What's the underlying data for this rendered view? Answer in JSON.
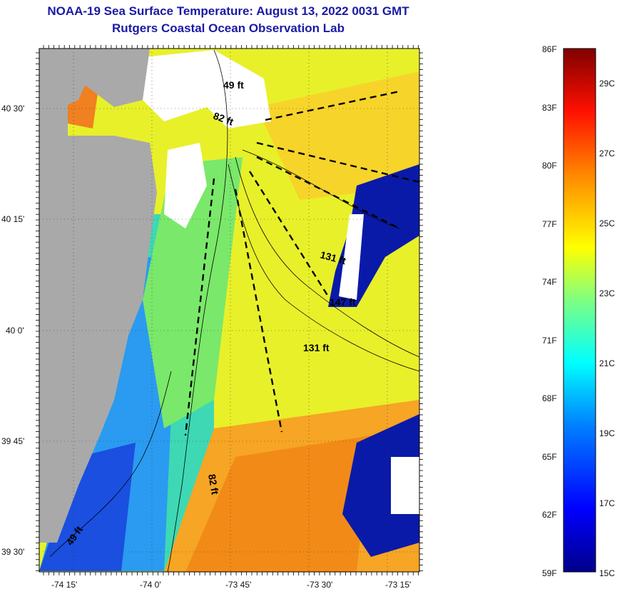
{
  "title": {
    "line1": "NOAA-19 Sea Surface Temperature:  August 13, 2022 0031 GMT",
    "line2": "Rutgers Coastal Ocean Observation Lab"
  },
  "map": {
    "lat_labels": [
      "40 30'",
      "40 15'",
      "40 0'",
      "39 45'",
      "39 30'"
    ],
    "lon_labels": [
      "-74 15'",
      "-74 0'",
      "-73 45'",
      "-73 30'",
      "-73 15'"
    ],
    "depth_labels": [
      "49 ft",
      "82 ft",
      "131 ft",
      "147 ft",
      "131 ft",
      "82 ft",
      "49 ft"
    ],
    "colors": {
      "land": "#a9a9a9",
      "cloud": "#ffffff",
      "warm": "#f39a1f",
      "cool": "#20d0d0"
    }
  },
  "colorbar": {
    "f_labels": [
      "86F",
      "83F",
      "80F",
      "77F",
      "74F",
      "71F",
      "68F",
      "65F",
      "62F",
      "59F"
    ],
    "c_labels": [
      "29C",
      "27C",
      "25C",
      "23C",
      "21C",
      "19C",
      "17C",
      "15C"
    ]
  }
}
